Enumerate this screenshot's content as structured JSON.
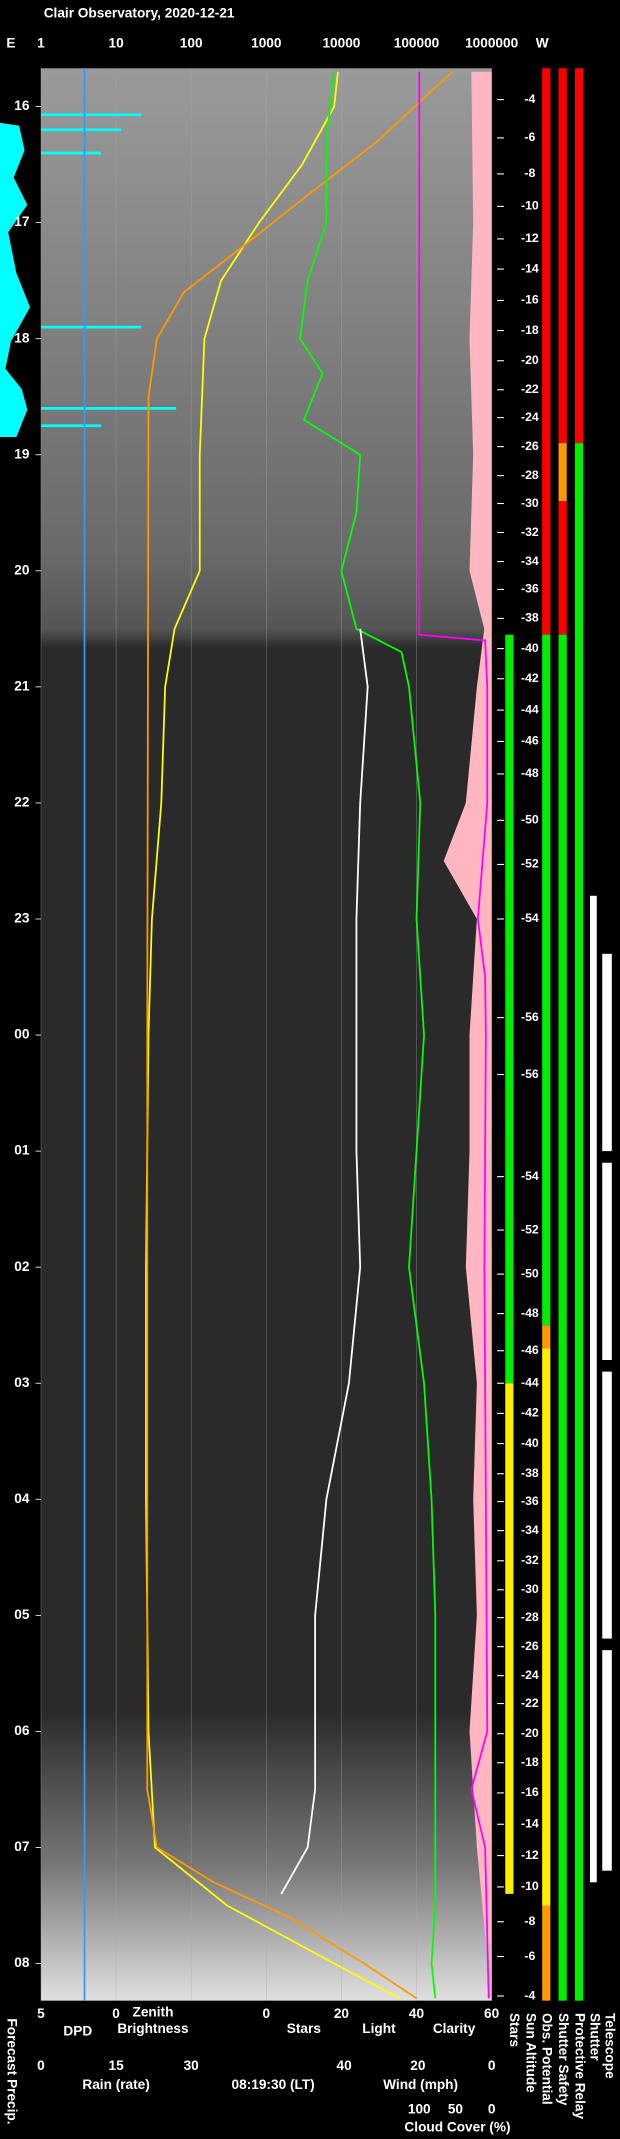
{
  "chart_data": {
    "type": "line",
    "title": "Clair Observatory, 2020-12-21",
    "x_end_labels": [
      "E",
      "W"
    ],
    "xscale": "log",
    "xlim": [
      1,
      1000000
    ],
    "xticks": [
      1,
      10,
      100,
      1000,
      10000,
      100000,
      1000000
    ],
    "grid": true,
    "ylim": [
      15.67,
      32.32
    ],
    "yticks": [
      16,
      17,
      18,
      19,
      20,
      21,
      22,
      23,
      {
        "value": 24,
        "label": "00"
      },
      {
        "value": 25,
        "label": "01"
      },
      {
        "value": 26,
        "label": "02"
      },
      {
        "value": 27,
        "label": "03"
      },
      {
        "value": 28,
        "label": "04"
      },
      {
        "value": 29,
        "label": "05"
      },
      {
        "value": 30,
        "label": "06"
      },
      {
        "value": 31,
        "label": "07"
      },
      {
        "value": 32,
        "label": "08"
      }
    ],
    "bottom_axes": {
      "dpd": {
        "xlim": [
          5,
          0
        ],
        "xticks": [
          5,
          0
        ],
        "label": "DPD",
        "color": "#3399ff"
      },
      "zenith": {
        "label": [
          "Zenith",
          "Brightness"
        ],
        "color": "#ffff00"
      },
      "sky": {
        "xlim": [
          0,
          60
        ],
        "xticks": [
          0,
          20,
          40,
          60
        ],
        "labels": [
          {
            "text": "Stars",
            "color": "#ffffff"
          },
          {
            "text": "Light",
            "color": "#ffff00"
          },
          {
            "text": "Clarity",
            "color": "#00ff00"
          }
        ]
      },
      "rain": {
        "xlim": [
          0,
          30
        ],
        "xticks": [
          0,
          15,
          30
        ],
        "label": "Rain (rate)",
        "color": "#3399ff"
      },
      "wind": {
        "xlim": [
          40,
          0
        ],
        "xticks": [
          40,
          20,
          0
        ],
        "label": "Wind (mph)",
        "color": "#ffb6c1"
      },
      "cloud": {
        "xlim": [
          100,
          0
        ],
        "xticks": [
          100,
          50,
          0
        ],
        "label": "Cloud Cover (%)",
        "color": "#ff00ff"
      }
    },
    "time_stamp": "08:19:30 (LT)",
    "forecast_precip_label": "Forecast Precip.",
    "series": [
      {
        "type": "line",
        "axis": "top",
        "color": "#ffff00",
        "x": [
          15.7,
          16.0,
          16.5,
          17.0,
          17.5,
          18.0,
          19.0,
          20.0,
          20.5,
          21,
          22,
          23,
          24,
          26,
          28,
          30,
          31,
          31.5,
          32,
          32.3
        ],
        "values": [
          9000,
          8000,
          3000,
          800,
          250,
          150,
          130,
          130,
          60,
          45,
          40,
          30,
          27,
          25,
          25,
          27,
          33,
          300,
          8000,
          60000
        ]
      },
      {
        "type": "line",
        "axis": "top",
        "color": "#ff9900",
        "x": [
          15.7,
          16.3,
          16.8,
          17.2,
          17.6,
          18.0,
          18.5,
          24,
          30.5,
          31.0,
          31.3,
          31.6,
          32.0,
          32.3
        ],
        "values": [
          300000,
          30000,
          3000,
          500,
          80,
          35,
          27,
          26,
          26,
          35,
          200,
          2000,
          20000,
          100000
        ]
      },
      {
        "type": "line",
        "axis": "sky",
        "color": "#00ff00",
        "x": [
          15.7,
          16.3,
          17,
          17.5,
          18,
          18.3,
          18.7,
          19,
          19.5,
          20,
          20.5,
          20.7,
          21,
          22,
          23,
          24,
          25,
          26,
          27,
          28,
          29,
          30,
          31,
          31.5,
          32,
          32.3
        ],
        "values": [
          18,
          16,
          16,
          11,
          9,
          15,
          10,
          25,
          24,
          20,
          24,
          36,
          38,
          41,
          40,
          42,
          40,
          38,
          42,
          44,
          45,
          45,
          45,
          45,
          44,
          45
        ]
      },
      {
        "type": "line",
        "axis": "sky",
        "color": "#ffffff",
        "x": [
          20.5,
          21,
          22,
          23,
          24,
          25,
          26,
          27,
          28,
          29,
          30,
          30.5,
          31,
          31.4
        ],
        "values": [
          25,
          27,
          25,
          24,
          24,
          24,
          25,
          22,
          16,
          13,
          13,
          13,
          11,
          4
        ]
      },
      {
        "type": "area",
        "axis": "wind",
        "color": "#ffb6c1",
        "x": [
          15.7,
          17,
          18,
          19,
          20,
          20.5,
          21,
          22,
          22.5,
          23,
          24,
          25,
          26,
          27,
          28,
          29,
          30,
          31,
          32,
          32.3
        ],
        "values": [
          5.5,
          5,
          6,
          5,
          6,
          2,
          4,
          7,
          13,
          4,
          6,
          6,
          7,
          4,
          5,
          4,
          6,
          4,
          1,
          1
        ]
      },
      {
        "type": "line",
        "axis": "cloud",
        "color": "#ff00ff",
        "x": [
          15.7,
          20.55,
          20.6,
          21,
          22,
          23,
          23.5,
          24,
          26,
          28,
          30,
          30.5,
          31,
          32.3
        ],
        "values": [
          100,
          100,
          9,
          6,
          6,
          19,
          9,
          8,
          10,
          8,
          6,
          28,
          9,
          4
        ]
      },
      {
        "type": "line",
        "axis": "dpd",
        "color": "#3399ff",
        "x": [
          15.67,
          32.32
        ],
        "values": [
          2.1,
          2.1
        ]
      },
      {
        "type": "bar",
        "axis": "rain",
        "color": "#00ffff",
        "x": [
          16.07,
          16.2,
          16.4,
          17.9,
          18.6,
          18.75
        ],
        "values": [
          20,
          16,
          12,
          20,
          27,
          12
        ]
      }
    ],
    "sun_altitude": {
      "name": "Sun Altitude",
      "x": [
        15.94,
        16.27,
        16.58,
        16.86,
        17.14,
        17.4,
        17.67,
        17.93,
        18.19,
        18.44,
        18.68,
        18.93,
        19.18,
        19.42,
        19.67,
        19.92,
        20.16,
        20.41,
        20.67,
        20.93,
        21.2,
        21.47,
        21.75,
        22.15,
        22.53,
        23.0,
        23.85,
        24.34,
        25.22,
        25.68,
        26.06,
        26.4,
        26.72,
        27.0,
        27.26,
        27.52,
        27.78,
        28.02,
        28.27,
        28.53,
        28.78,
        29.02,
        29.27,
        29.52,
        29.76,
        30.02,
        30.27,
        30.53,
        30.8,
        31.07,
        31.34,
        31.64,
        31.94,
        32.28
      ],
      "values": [
        -4,
        -6,
        -8,
        -10,
        -12,
        -14,
        -16,
        -18,
        -20,
        -22,
        -24,
        -26,
        -28,
        -30,
        -32,
        -34,
        -36,
        -38,
        -40,
        -42,
        -44,
        -46,
        -48,
        -50,
        -52,
        -54,
        -56,
        -56,
        -54,
        -52,
        -50,
        -48,
        -46,
        -44,
        -42,
        -40,
        -38,
        -36,
        -34,
        -32,
        -30,
        -28,
        -26,
        -24,
        -22,
        -20,
        -18,
        -16,
        -14,
        -12,
        -10,
        -8,
        -6,
        -4
      ]
    },
    "status_columns": [
      {
        "name": "Stars",
        "segments": [
          {
            "from": 20.55,
            "to": 27.0,
            "color": "#00ee00"
          },
          {
            "from": 27.0,
            "to": 31.4,
            "color": "#ffee00"
          }
        ]
      },
      {
        "name": "Obs. Potential",
        "segments": [
          {
            "from": 15.67,
            "to": 20.55,
            "color": "#ff0000"
          },
          {
            "from": 20.55,
            "to": 26.5,
            "color": "#00ee00"
          },
          {
            "from": 26.5,
            "to": 26.7,
            "color": "#ff9900"
          },
          {
            "from": 26.7,
            "to": 31.5,
            "color": "#ffee00"
          },
          {
            "from": 31.5,
            "to": 32.32,
            "color": "#ff9900"
          }
        ]
      },
      {
        "name": "Shutter Safety",
        "segments": [
          {
            "from": 15.67,
            "to": 18.9,
            "color": "#ff0000"
          },
          {
            "from": 18.9,
            "to": 19.4,
            "color": "#ff9900"
          },
          {
            "from": 19.4,
            "to": 20.55,
            "color": "#ff0000"
          },
          {
            "from": 20.55,
            "to": 32.32,
            "color": "#00ee00"
          }
        ]
      },
      {
        "name": "Protective Relay",
        "segments": [
          {
            "from": 15.67,
            "to": 18.9,
            "color": "#ff0000"
          },
          {
            "from": 18.9,
            "to": 32.32,
            "color": "#00ee00"
          }
        ]
      },
      {
        "name": "Shutter",
        "segments": [
          {
            "from": 22.8,
            "to": 31.3,
            "color": "#ffffff"
          }
        ]
      },
      {
        "name": "Telescope",
        "segments": [
          {
            "from": 23.3,
            "to": 25.0,
            "color": "#ffffff"
          },
          {
            "from": 25.1,
            "to": 26.8,
            "color": "#ffffff"
          },
          {
            "from": 26.9,
            "to": 29.2,
            "color": "#ffffff"
          },
          {
            "from": 29.3,
            "to": 31.2,
            "color": "#ffffff"
          }
        ]
      }
    ]
  }
}
